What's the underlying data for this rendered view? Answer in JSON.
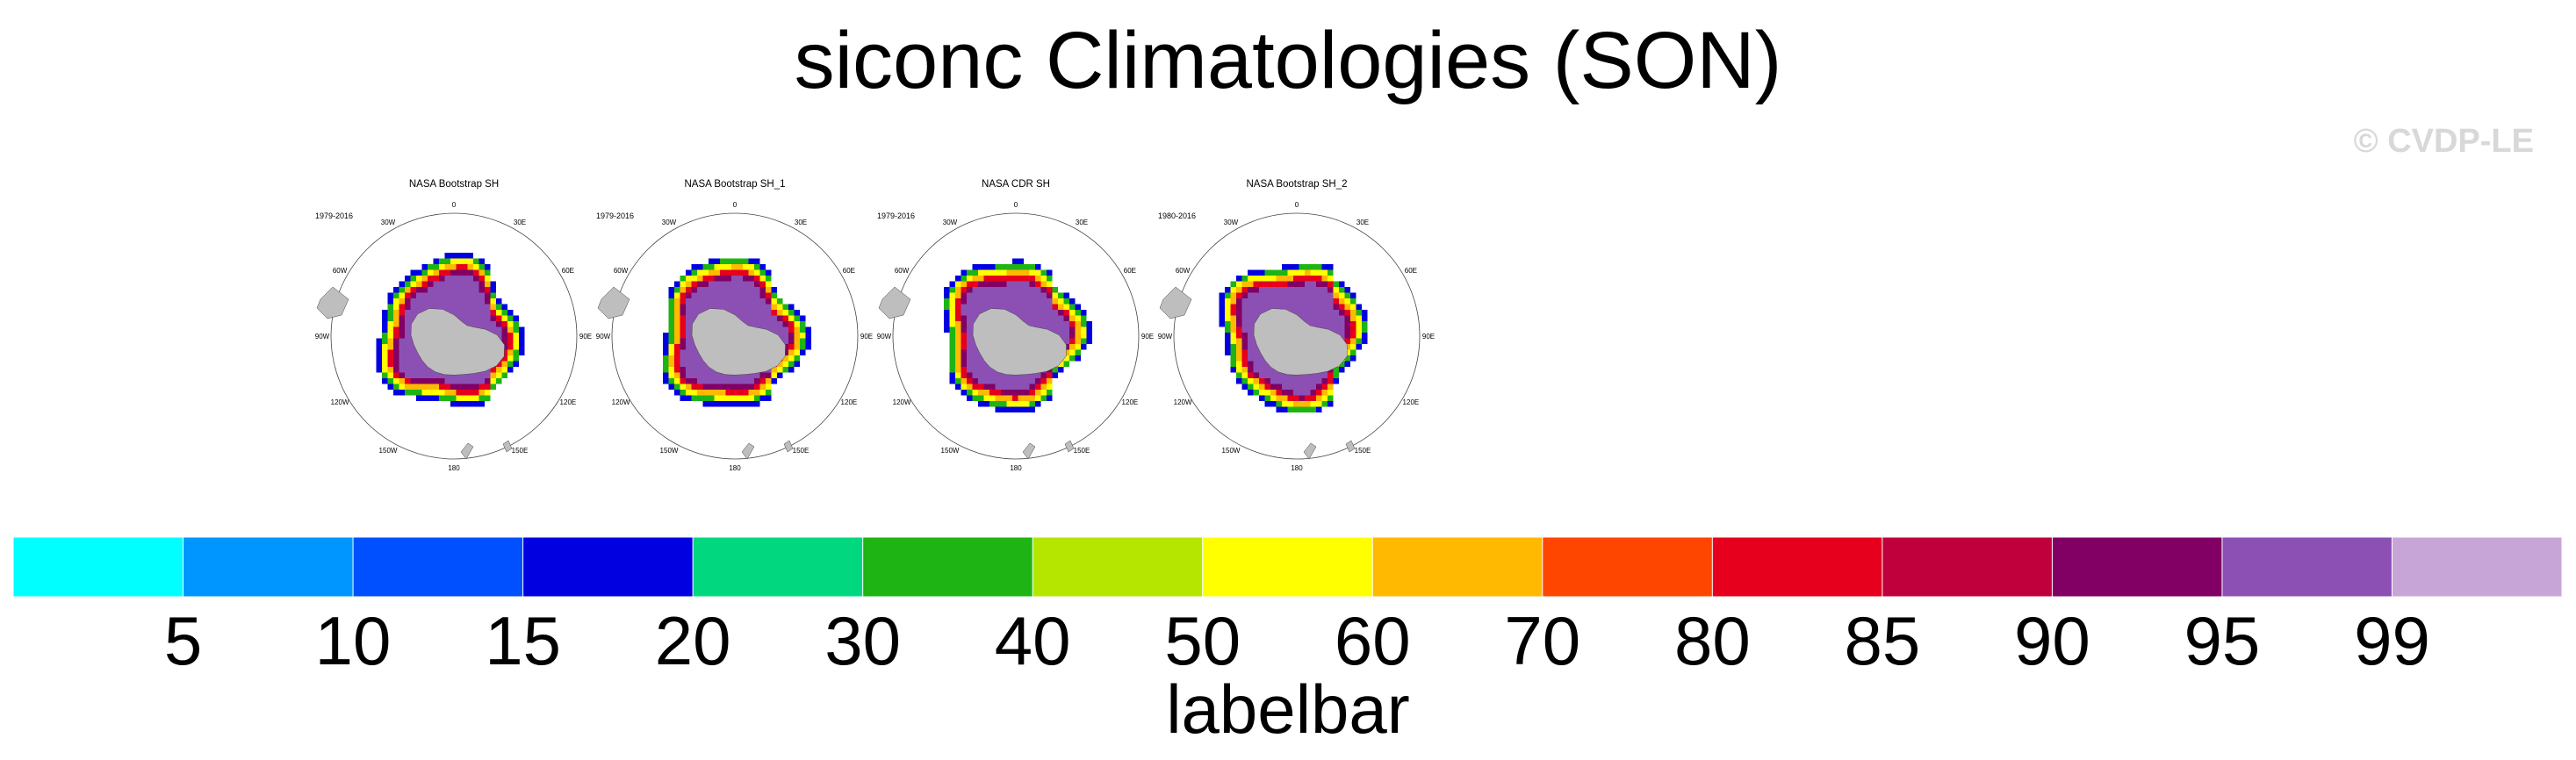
{
  "figure": {
    "title": "siconc Climatologies (SON)",
    "copyright": "© CVDP-LE"
  },
  "chart_data": {
    "type": "heatmap",
    "projection": "south-polar-stereographic",
    "variable": "siconc",
    "season": "SON",
    "panels": [
      {
        "title": "NASA Bootstrap SH",
        "period": "1979-2016"
      },
      {
        "title": "NASA Bootstrap SH_1",
        "period": "1979-2016"
      },
      {
        "title": "NASA CDR SH",
        "period": "1979-2016"
      },
      {
        "title": "NASA Bootstrap SH_2",
        "period": "1980-2016"
      }
    ],
    "lon_labels": [
      "0",
      "30E",
      "60E",
      "90E",
      "120E",
      "150E",
      "180",
      "150W",
      "120W",
      "90W",
      "60W",
      "30W"
    ],
    "colorbar": {
      "levels": [
        "5",
        "10",
        "15",
        "20",
        "30",
        "40",
        "50",
        "60",
        "70",
        "80",
        "85",
        "90",
        "95",
        "99"
      ],
      "colors": [
        "#00ffff",
        "#0096ff",
        "#0050ff",
        "#0000e1",
        "#00d77f",
        "#1eb414",
        "#b4e600",
        "#ffff00",
        "#ffb900",
        "#ff4600",
        "#e6001e",
        "#c0003c",
        "#820064",
        "#8c50b4",
        "#c8a5d7"
      ],
      "label": "labelbar"
    }
  }
}
